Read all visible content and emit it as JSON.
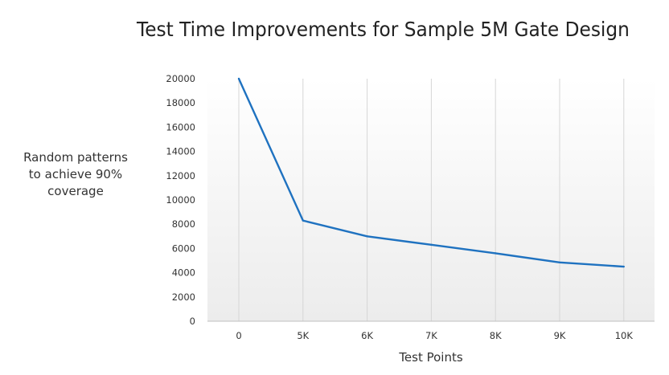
{
  "chart_data": {
    "type": "line",
    "title": "Test Time Improvements for Sample 5M Gate Design",
    "xlabel": "Test Points",
    "ylabel": "Random patterns to achieve 90% coverage",
    "categories": [
      "0",
      "5K",
      "6K",
      "7K",
      "8K",
      "9K",
      "10K"
    ],
    "series": [
      {
        "values": [
          20000,
          8300,
          7000,
          6300,
          5600,
          4850,
          4500
        ]
      }
    ],
    "ylim": [
      0,
      20000
    ],
    "yticks": [
      0,
      2000,
      4000,
      6000,
      8000,
      10000,
      12000,
      14000,
      16000,
      18000,
      20000
    ],
    "grid": "vertical lines at categories",
    "line_color": "#1f72c0"
  }
}
